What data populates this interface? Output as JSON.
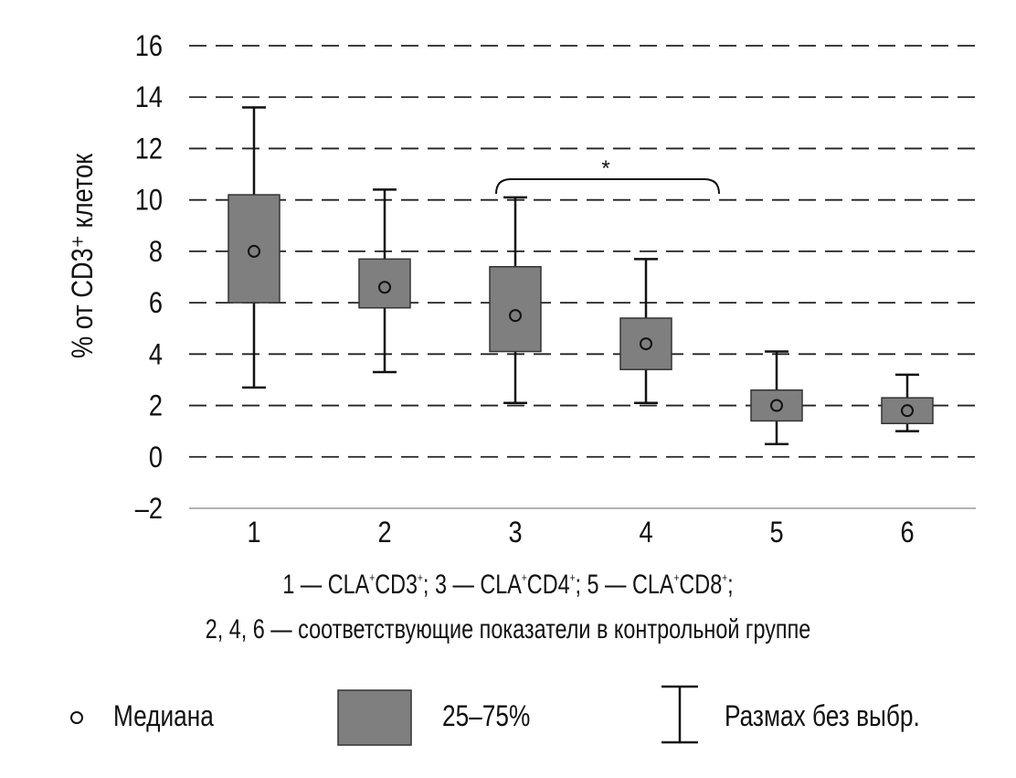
{
  "chart_data": {
    "type": "boxplot",
    "ylabel": "% от CD3⁺ клеток",
    "ylim": [
      -2,
      16
    ],
    "yticks": [
      -2,
      0,
      2,
      4,
      6,
      8,
      10,
      12,
      14,
      16
    ],
    "ytick_labels": [
      "–2",
      "0",
      "2",
      "4",
      "6",
      "8",
      "10",
      "12",
      "14",
      "16"
    ],
    "grid": "dashed",
    "categories": [
      "1",
      "2",
      "3",
      "4",
      "5",
      "6"
    ],
    "boxes": [
      {
        "category": "1",
        "min": 2.7,
        "q1": 6.0,
        "median": 8.0,
        "q3": 10.2,
        "max": 13.6
      },
      {
        "category": "2",
        "min": 3.3,
        "q1": 5.8,
        "median": 6.6,
        "q3": 7.7,
        "max": 10.4
      },
      {
        "category": "3",
        "min": 2.1,
        "q1": 4.1,
        "median": 5.5,
        "q3": 7.4,
        "max": 10.1
      },
      {
        "category": "4",
        "min": 2.1,
        "q1": 3.4,
        "median": 4.4,
        "q3": 5.4,
        "max": 7.7
      },
      {
        "category": "5",
        "min": 0.5,
        "q1": 1.4,
        "median": 2.0,
        "q3": 2.6,
        "max": 4.1
      },
      {
        "category": "6",
        "min": 1.0,
        "q1": 1.3,
        "median": 1.8,
        "q3": 2.3,
        "max": 3.2
      }
    ],
    "annotations": [
      {
        "text": "*",
        "from_category": "3",
        "to_category": "4",
        "type": "bracket"
      }
    ],
    "colors": {
      "box_fill": "#7f7f7f",
      "grid": "#222222",
      "axis": "#999999",
      "text": "#111111"
    }
  },
  "caption": {
    "line1": [
      "1 — CLA",
      "CD3",
      "; 3 — CLA",
      "CD4",
      "; 5 — CLA",
      "CD8",
      ";"
    ],
    "sup": "+",
    "line2": "2, 4, 6 — соответствующие показатели в контрольной группе"
  },
  "legend": {
    "median_label": "Медиана",
    "box_label": "25–75%",
    "range_label": "Размах без выбр."
  }
}
